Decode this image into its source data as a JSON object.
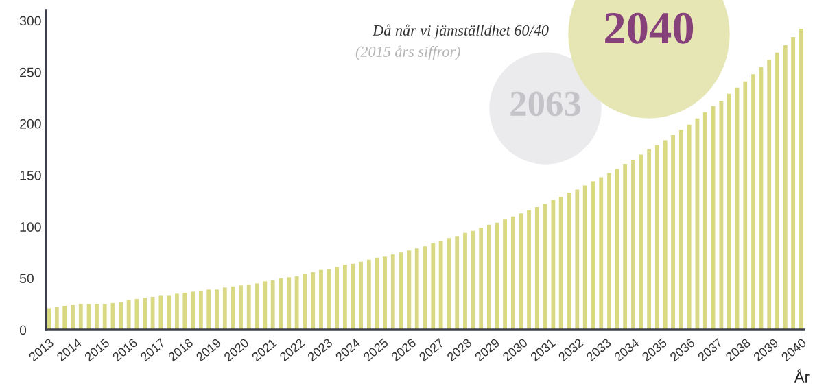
{
  "chart_data": {
    "type": "bar",
    "x": [
      2013.0,
      2013.29,
      2013.57,
      2013.86,
      2014.15,
      2014.44,
      2014.72,
      2015.01,
      2015.3,
      2015.59,
      2015.87,
      2016.16,
      2016.45,
      2016.73,
      2017.02,
      2017.31,
      2017.6,
      2017.88,
      2018.17,
      2018.46,
      2018.74,
      2019.03,
      2019.32,
      2019.61,
      2019.89,
      2020.18,
      2020.47,
      2020.76,
      2021.04,
      2021.33,
      2021.62,
      2021.9,
      2022.19,
      2022.48,
      2022.77,
      2023.05,
      2023.34,
      2023.63,
      2023.91,
      2024.2,
      2024.49,
      2024.78,
      2025.06,
      2025.35,
      2025.64,
      2025.93,
      2026.21,
      2026.5,
      2026.79,
      2027.07,
      2027.36,
      2027.65,
      2027.94,
      2028.22,
      2028.51,
      2028.8,
      2029.09,
      2029.37,
      2029.66,
      2029.95,
      2030.23,
      2030.52,
      2030.81,
      2031.1,
      2031.38,
      2031.67,
      2031.96,
      2032.24,
      2032.53,
      2032.82,
      2033.11,
      2033.39,
      2033.68,
      2033.97,
      2034.26,
      2034.54,
      2034.83,
      2035.12,
      2035.4,
      2035.69,
      2035.98,
      2036.27,
      2036.55,
      2036.84,
      2037.13,
      2037.41,
      2037.7,
      2037.99,
      2038.28,
      2038.56,
      2038.85,
      2039.14,
      2039.43,
      2039.71,
      2040.0
    ],
    "values": [
      21,
      22,
      23,
      24,
      25,
      25,
      25,
      25,
      26,
      27,
      29,
      30,
      31,
      32,
      33,
      33,
      35,
      36,
      37,
      38,
      39,
      39,
      41,
      42,
      43,
      44,
      45,
      47,
      48,
      50,
      51,
      52,
      54,
      56,
      58,
      59,
      61,
      63,
      64,
      66,
      68,
      70,
      71,
      73,
      75,
      77,
      79,
      81,
      84,
      86,
      89,
      91,
      94,
      96,
      99,
      102,
      104,
      107,
      110,
      113,
      116,
      119,
      122,
      126,
      129,
      133,
      136,
      140,
      144,
      148,
      152,
      156,
      161,
      165,
      170,
      175,
      179,
      184,
      189,
      194,
      199,
      205,
      211,
      217,
      222,
      229,
      235,
      241,
      248,
      255,
      262,
      269,
      276,
      284,
      292
    ],
    "color": "#d8d982",
    "xlim": [
      2012.9,
      2040.1
    ],
    "xticks": [
      2013,
      2014,
      2015,
      2016,
      2017,
      2018,
      2019,
      2020,
      2021,
      2022,
      2023,
      2024,
      2025,
      2026,
      2027,
      2028,
      2029,
      2030,
      2031,
      2032,
      2033,
      2034,
      2035,
      2036,
      2037,
      2038,
      2039,
      2040
    ],
    "ylim": [
      0,
      310
    ],
    "yticks": [
      0,
      50,
      100,
      150,
      200,
      250,
      300
    ],
    "xlabel": "År",
    "grid": false,
    "legend": false,
    "annotations": [
      "Då når vi jämställdhet 60/40",
      "(2015 års siffror)",
      "2063",
      "2040"
    ]
  }
}
